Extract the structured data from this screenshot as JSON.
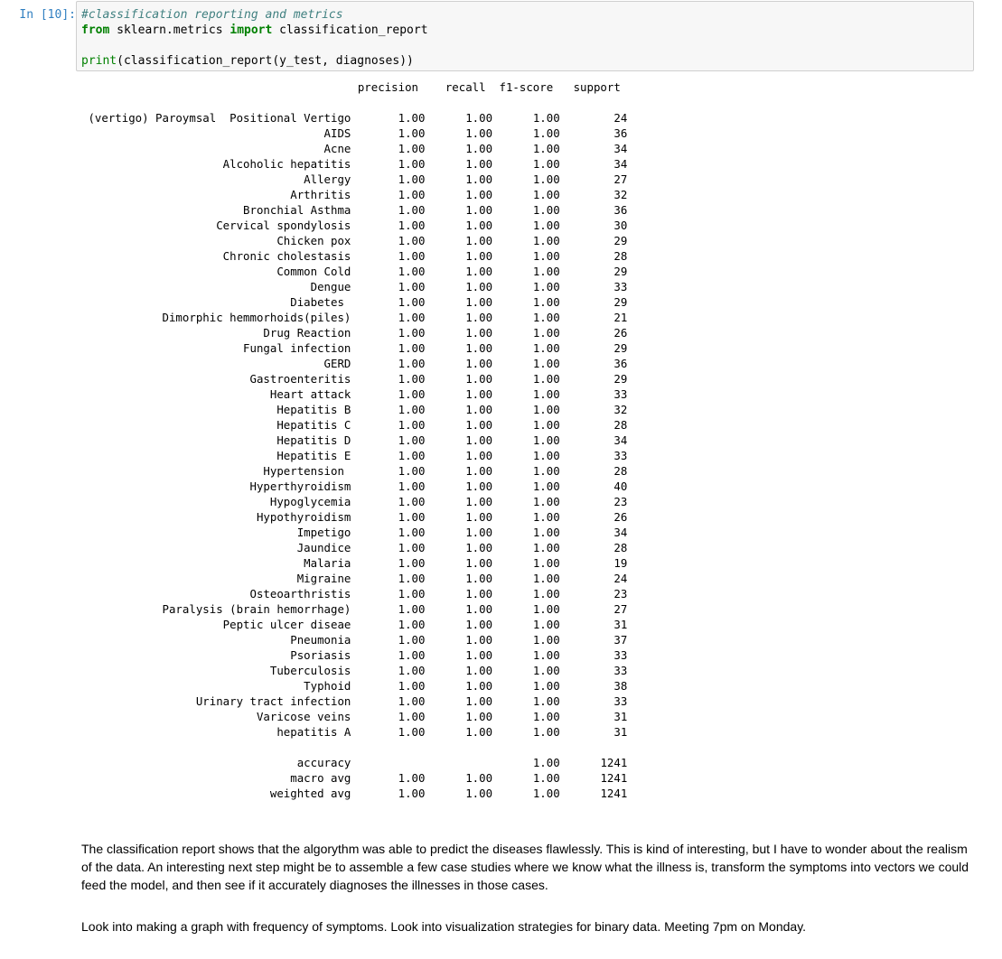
{
  "cell": {
    "prompt": "In [10]:",
    "code": {
      "comment": "#classification reporting and metrics",
      "kw_from": "from",
      "module": " sklearn.metrics ",
      "kw_import": "import",
      "imported": " classification_report",
      "print_fn": "print",
      "print_args": "(classification_report(y_test, diagnoses))"
    }
  },
  "report": {
    "header": "                                         precision    recall  f1-score   support",
    "rows": [
      {
        "label": "(vertigo) Paroymsal  Positional Vertigo",
        "precision": "1.00",
        "recall": "1.00",
        "f1": "1.00",
        "support": "24"
      },
      {
        "label": "AIDS",
        "precision": "1.00",
        "recall": "1.00",
        "f1": "1.00",
        "support": "36"
      },
      {
        "label": "Acne",
        "precision": "1.00",
        "recall": "1.00",
        "f1": "1.00",
        "support": "34"
      },
      {
        "label": "Alcoholic hepatitis",
        "precision": "1.00",
        "recall": "1.00",
        "f1": "1.00",
        "support": "34"
      },
      {
        "label": "Allergy",
        "precision": "1.00",
        "recall": "1.00",
        "f1": "1.00",
        "support": "27"
      },
      {
        "label": "Arthritis",
        "precision": "1.00",
        "recall": "1.00",
        "f1": "1.00",
        "support": "32"
      },
      {
        "label": "Bronchial Asthma",
        "precision": "1.00",
        "recall": "1.00",
        "f1": "1.00",
        "support": "36"
      },
      {
        "label": "Cervical spondylosis",
        "precision": "1.00",
        "recall": "1.00",
        "f1": "1.00",
        "support": "30"
      },
      {
        "label": "Chicken pox",
        "precision": "1.00",
        "recall": "1.00",
        "f1": "1.00",
        "support": "29"
      },
      {
        "label": "Chronic cholestasis",
        "precision": "1.00",
        "recall": "1.00",
        "f1": "1.00",
        "support": "28"
      },
      {
        "label": "Common Cold",
        "precision": "1.00",
        "recall": "1.00",
        "f1": "1.00",
        "support": "29"
      },
      {
        "label": "Dengue",
        "precision": "1.00",
        "recall": "1.00",
        "f1": "1.00",
        "support": "33"
      },
      {
        "label": "Diabetes ",
        "precision": "1.00",
        "recall": "1.00",
        "f1": "1.00",
        "support": "29"
      },
      {
        "label": "Dimorphic hemmorhoids(piles)",
        "precision": "1.00",
        "recall": "1.00",
        "f1": "1.00",
        "support": "21"
      },
      {
        "label": "Drug Reaction",
        "precision": "1.00",
        "recall": "1.00",
        "f1": "1.00",
        "support": "26"
      },
      {
        "label": "Fungal infection",
        "precision": "1.00",
        "recall": "1.00",
        "f1": "1.00",
        "support": "29"
      },
      {
        "label": "GERD",
        "precision": "1.00",
        "recall": "1.00",
        "f1": "1.00",
        "support": "36"
      },
      {
        "label": "Gastroenteritis",
        "precision": "1.00",
        "recall": "1.00",
        "f1": "1.00",
        "support": "29"
      },
      {
        "label": "Heart attack",
        "precision": "1.00",
        "recall": "1.00",
        "f1": "1.00",
        "support": "33"
      },
      {
        "label": "Hepatitis B",
        "precision": "1.00",
        "recall": "1.00",
        "f1": "1.00",
        "support": "32"
      },
      {
        "label": "Hepatitis C",
        "precision": "1.00",
        "recall": "1.00",
        "f1": "1.00",
        "support": "28"
      },
      {
        "label": "Hepatitis D",
        "precision": "1.00",
        "recall": "1.00",
        "f1": "1.00",
        "support": "34"
      },
      {
        "label": "Hepatitis E",
        "precision": "1.00",
        "recall": "1.00",
        "f1": "1.00",
        "support": "33"
      },
      {
        "label": "Hypertension ",
        "precision": "1.00",
        "recall": "1.00",
        "f1": "1.00",
        "support": "28"
      },
      {
        "label": "Hyperthyroidism",
        "precision": "1.00",
        "recall": "1.00",
        "f1": "1.00",
        "support": "40"
      },
      {
        "label": "Hypoglycemia",
        "precision": "1.00",
        "recall": "1.00",
        "f1": "1.00",
        "support": "23"
      },
      {
        "label": "Hypothyroidism",
        "precision": "1.00",
        "recall": "1.00",
        "f1": "1.00",
        "support": "26"
      },
      {
        "label": "Impetigo",
        "precision": "1.00",
        "recall": "1.00",
        "f1": "1.00",
        "support": "34"
      },
      {
        "label": "Jaundice",
        "precision": "1.00",
        "recall": "1.00",
        "f1": "1.00",
        "support": "28"
      },
      {
        "label": "Malaria",
        "precision": "1.00",
        "recall": "1.00",
        "f1": "1.00",
        "support": "19"
      },
      {
        "label": "Migraine",
        "precision": "1.00",
        "recall": "1.00",
        "f1": "1.00",
        "support": "24"
      },
      {
        "label": "Osteoarthristis",
        "precision": "1.00",
        "recall": "1.00",
        "f1": "1.00",
        "support": "23"
      },
      {
        "label": "Paralysis (brain hemorrhage)",
        "precision": "1.00",
        "recall": "1.00",
        "f1": "1.00",
        "support": "27"
      },
      {
        "label": "Peptic ulcer diseae",
        "precision": "1.00",
        "recall": "1.00",
        "f1": "1.00",
        "support": "31"
      },
      {
        "label": "Pneumonia",
        "precision": "1.00",
        "recall": "1.00",
        "f1": "1.00",
        "support": "37"
      },
      {
        "label": "Psoriasis",
        "precision": "1.00",
        "recall": "1.00",
        "f1": "1.00",
        "support": "33"
      },
      {
        "label": "Tuberculosis",
        "precision": "1.00",
        "recall": "1.00",
        "f1": "1.00",
        "support": "33"
      },
      {
        "label": "Typhoid",
        "precision": "1.00",
        "recall": "1.00",
        "f1": "1.00",
        "support": "38"
      },
      {
        "label": "Urinary tract infection",
        "precision": "1.00",
        "recall": "1.00",
        "f1": "1.00",
        "support": "33"
      },
      {
        "label": "Varicose veins",
        "precision": "1.00",
        "recall": "1.00",
        "f1": "1.00",
        "support": "31"
      },
      {
        "label": "hepatitis A",
        "precision": "1.00",
        "recall": "1.00",
        "f1": "1.00",
        "support": "31"
      }
    ],
    "summary": [
      {
        "label": "accuracy",
        "precision": "",
        "recall": "",
        "f1": "1.00",
        "support": "1241"
      },
      {
        "label": "macro avg",
        "precision": "1.00",
        "recall": "1.00",
        "f1": "1.00",
        "support": "1241"
      },
      {
        "label": "weighted avg",
        "precision": "1.00",
        "recall": "1.00",
        "f1": "1.00",
        "support": "1241"
      }
    ]
  },
  "markdown": {
    "paragraph1": "The classification report shows that the algorythm was able to predict the diseases flawlessly. This is kind of interesting, but I have to wonder about the realism of the data. An interesting next step might be to assemble a few case studies where we know what the illness is, transform the symptoms into vectors we could feed the model, and then see if it accurately diagnoses the illnesses in those cases.",
    "paragraph2": "Look into making a graph with frequency of symptoms. Look into visualization strategies for binary data. Meeting 7pm on Monday."
  }
}
